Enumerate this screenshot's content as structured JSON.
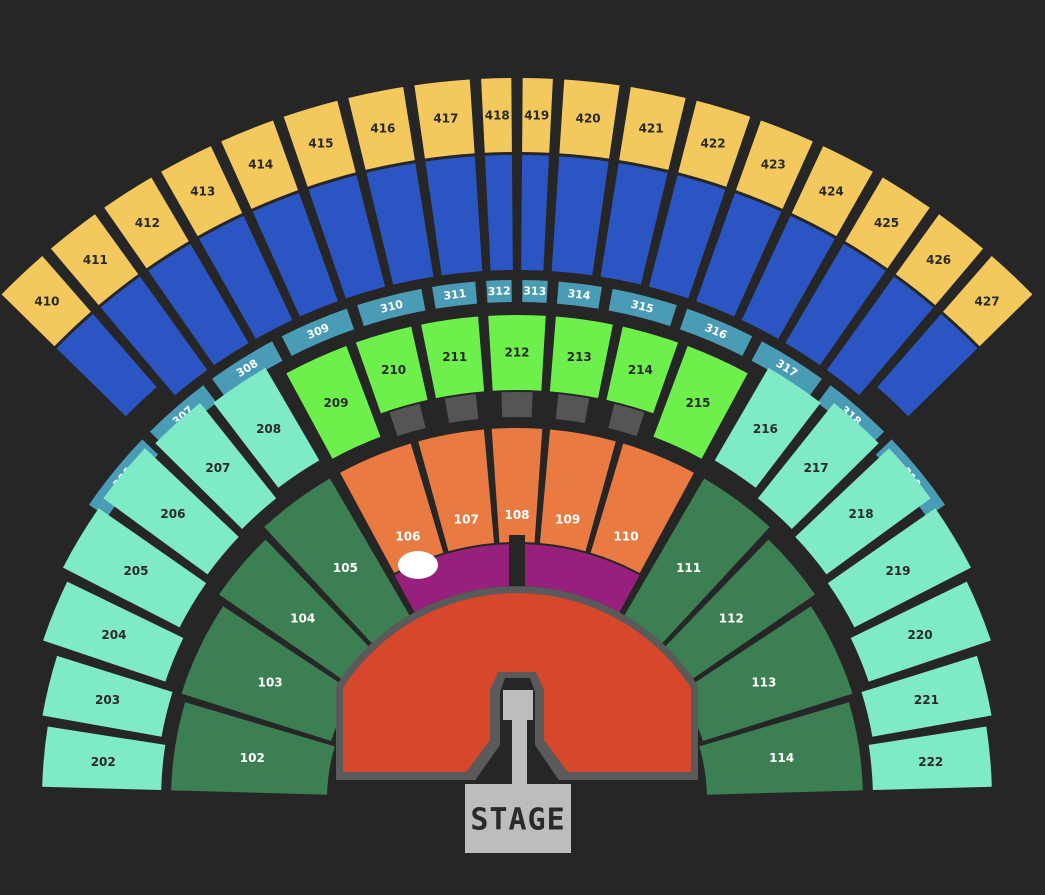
{
  "background": "#262626",
  "tiers": {
    "level_400": {
      "color": "#f3c85c",
      "label_color": "#2a2a2a",
      "sections": [
        "410",
        "411",
        "412",
        "413",
        "414",
        "415",
        "416",
        "417",
        "418",
        "419",
        "420",
        "421",
        "422",
        "423",
        "424",
        "425",
        "426",
        "427"
      ]
    },
    "level_400_lower": {
      "color": "#2b55c2"
    },
    "level_300": {
      "color": "#4a9cb6",
      "label_color": "#ffffff",
      "sections": [
        "306",
        "307",
        "308",
        "309",
        "310",
        "311",
        "312",
        "313",
        "314",
        "315",
        "316",
        "317",
        "318",
        "319"
      ]
    },
    "level_200_center": {
      "color": "#6ef04c",
      "label_color": "#2a2a2a",
      "aisle_color": "#555555",
      "sections": [
        "209",
        "210",
        "211",
        "212",
        "213",
        "214",
        "215"
      ]
    },
    "level_200_side": {
      "color": "#7eeac6",
      "label_color": "#2a2a2a",
      "sections": [
        "202",
        "203",
        "204",
        "205",
        "206",
        "207",
        "208",
        "216",
        "217",
        "218",
        "219",
        "220",
        "221",
        "222"
      ]
    },
    "level_100_side": {
      "color": "#3c7f52",
      "label_color": "#ffffff",
      "sections": [
        "102",
        "103",
        "104",
        "105",
        "111",
        "112",
        "113",
        "114"
      ]
    },
    "level_100_center": {
      "color": "#e97b42",
      "label_color": "#ffffff",
      "sections": [
        "106",
        "107",
        "108",
        "109",
        "110"
      ]
    }
  },
  "front_rows": {
    "color": "#96207c"
  },
  "selected_marker": {
    "color": "#ffffff"
  },
  "floor": {
    "color": "#d6472b",
    "edge_color": "#5a5a5a"
  },
  "stage": {
    "label": "STAGE",
    "color": "#bdbdbd",
    "text_color": "#2a2a2a"
  }
}
